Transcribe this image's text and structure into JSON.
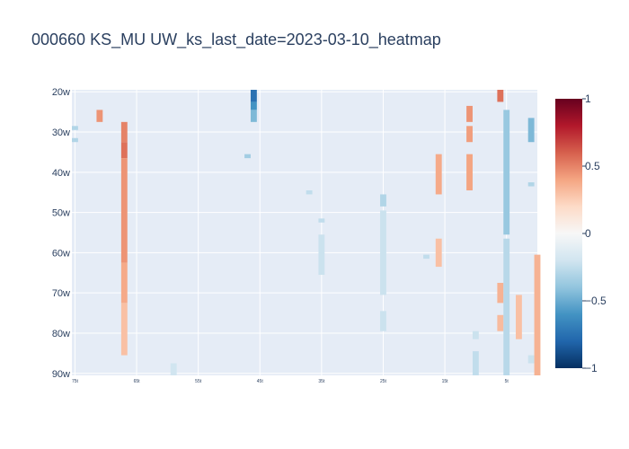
{
  "chart_data": {
    "type": "heatmap",
    "title": "000660 KS_MU UW_ks_last_date=2023-03-10_heatmap",
    "xlabel": "",
    "ylabel": "",
    "x_range": [
      75.5,
      0
    ],
    "x_tick_values": [
      75,
      65,
      55,
      45,
      35,
      25,
      15,
      5
    ],
    "x_tick_labels": [
      "75t",
      "65t",
      "55t",
      "45t",
      "35t",
      "25t",
      "15t",
      "5t"
    ],
    "y_range": [
      19.5,
      90.5
    ],
    "y_tick_values": [
      20,
      30,
      40,
      50,
      60,
      70,
      80,
      90
    ],
    "y_tick_labels": [
      "20w",
      "30w",
      "40w",
      "50w",
      "60w",
      "70w",
      "80w",
      "90w"
    ],
    "colorscale": "RdBu_r",
    "zmin": -1,
    "zmax": 1,
    "colorbar_ticks": [
      "1",
      "0.5",
      "0",
      "−0.5",
      "−1"
    ],
    "colorbar_tick_values": [
      1,
      0.5,
      0,
      -0.5,
      -1
    ],
    "grid": true,
    "colors": {
      "plot_background": "#e5ecf6",
      "grid": "#ffffff",
      "text": "#2a3f5f"
    },
    "cell_segments": [
      {
        "x": 75,
        "y_start": 29,
        "y_end": 29,
        "value": -0.3
      },
      {
        "x": 75,
        "y_start": 32,
        "y_end": 32,
        "value": -0.3
      },
      {
        "x": 71,
        "y_start": 25,
        "y_end": 27,
        "value": 0.45
      },
      {
        "x": 67,
        "y_start": 28,
        "y_end": 32,
        "value": 0.5
      },
      {
        "x": 67,
        "y_start": 33,
        "y_end": 36,
        "value": 0.55
      },
      {
        "x": 67,
        "y_start": 37,
        "y_end": 62,
        "value": 0.45
      },
      {
        "x": 67,
        "y_start": 63,
        "y_end": 72,
        "value": 0.38
      },
      {
        "x": 67,
        "y_start": 73,
        "y_end": 85,
        "value": 0.3
      },
      {
        "x": 59,
        "y_start": 88,
        "y_end": 90,
        "value": -0.2
      },
      {
        "x": 47,
        "y_start": 36,
        "y_end": 36,
        "value": -0.35
      },
      {
        "x": 46,
        "y_start": 20,
        "y_end": 22,
        "value": -0.75
      },
      {
        "x": 46,
        "y_start": 23,
        "y_end": 24,
        "value": -0.6
      },
      {
        "x": 46,
        "y_start": 25,
        "y_end": 27,
        "value": -0.45
      },
      {
        "x": 37,
        "y_start": 45,
        "y_end": 45,
        "value": -0.25
      },
      {
        "x": 35,
        "y_start": 52,
        "y_end": 52,
        "value": -0.25
      },
      {
        "x": 35,
        "y_start": 56,
        "y_end": 65,
        "value": -0.22
      },
      {
        "x": 25,
        "y_start": 46,
        "y_end": 48,
        "value": -0.3
      },
      {
        "x": 25,
        "y_start": 50,
        "y_end": 70,
        "value": -0.22
      },
      {
        "x": 25,
        "y_start": 75,
        "y_end": 79,
        "value": -0.22
      },
      {
        "x": 18,
        "y_start": 61,
        "y_end": 61,
        "value": -0.25
      },
      {
        "x": 16,
        "y_start": 36,
        "y_end": 45,
        "value": 0.38
      },
      {
        "x": 16,
        "y_start": 57,
        "y_end": 63,
        "value": 0.3
      },
      {
        "x": 11,
        "y_start": 24,
        "y_end": 27,
        "value": 0.45
      },
      {
        "x": 11,
        "y_start": 29,
        "y_end": 32,
        "value": 0.42
      },
      {
        "x": 11,
        "y_start": 36,
        "y_end": 44,
        "value": 0.4
      },
      {
        "x": 10,
        "y_start": 80,
        "y_end": 81,
        "value": -0.22
      },
      {
        "x": 10,
        "y_start": 85,
        "y_end": 90,
        "value": -0.25
      },
      {
        "x": 6,
        "y_start": 20,
        "y_end": 22,
        "value": 0.55
      },
      {
        "x": 6,
        "y_start": 68,
        "y_end": 72,
        "value": 0.35
      },
      {
        "x": 6,
        "y_start": 76,
        "y_end": 79,
        "value": 0.32
      },
      {
        "x": 5,
        "y_start": 25,
        "y_end": 55,
        "value": -0.38
      },
      {
        "x": 5,
        "y_start": 57,
        "y_end": 90,
        "value": -0.28
      },
      {
        "x": 3,
        "y_start": 71,
        "y_end": 81,
        "value": 0.3
      },
      {
        "x": 1,
        "y_start": 27,
        "y_end": 32,
        "value": -0.45
      },
      {
        "x": 1,
        "y_start": 43,
        "y_end": 43,
        "value": -0.3
      },
      {
        "x": 1,
        "y_start": 86,
        "y_end": 87,
        "value": -0.22
      },
      {
        "x": 0,
        "y_start": 61,
        "y_end": 90,
        "value": 0.35
      }
    ]
  }
}
